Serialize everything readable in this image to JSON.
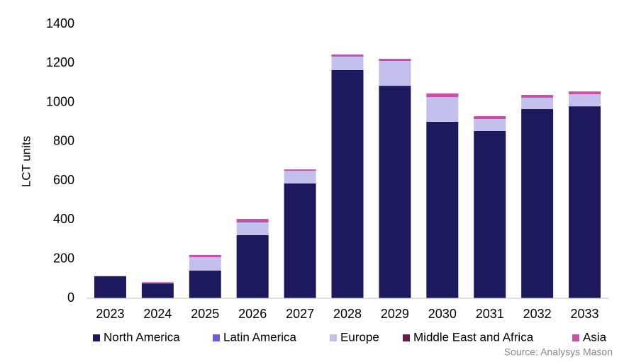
{
  "chart_data": {
    "type": "stacked-bar",
    "y_label": "LCT units",
    "source": "Source: Analysys Mason",
    "categories": [
      "2023",
      "2024",
      "2025",
      "2026",
      "2027",
      "2028",
      "2029",
      "2030",
      "2031",
      "2032",
      "2033"
    ],
    "series": [
      {
        "name": "North America",
        "color": "#1c1a5c",
        "values": [
          112,
          76,
          141,
          322,
          586,
          1165,
          1085,
          901,
          854,
          966,
          980
        ]
      },
      {
        "name": "Latin America",
        "color": "#6a5fd6",
        "values": [
          0,
          0,
          0,
          0,
          0,
          0,
          0,
          0,
          0,
          0,
          0
        ]
      },
      {
        "name": "Europe",
        "color": "#c4c0ee",
        "values": [
          3,
          4,
          69,
          65,
          65,
          69,
          127,
          126,
          61,
          58,
          62
        ]
      },
      {
        "name": "Middle East and Africa",
        "color": "#6b1a4a",
        "values": [
          0,
          0,
          0,
          0,
          0,
          0,
          0,
          0,
          0,
          0,
          0
        ]
      },
      {
        "name": "Asia",
        "color": "#c450a8",
        "values": [
          0,
          3,
          11,
          18,
          7,
          11,
          11,
          19,
          15,
          14,
          14
        ]
      }
    ],
    "ylim": [
      0,
      1400
    ],
    "yticks": [
      0,
      200,
      400,
      600,
      800,
      1000,
      1200,
      1400
    ],
    "grid": false
  }
}
